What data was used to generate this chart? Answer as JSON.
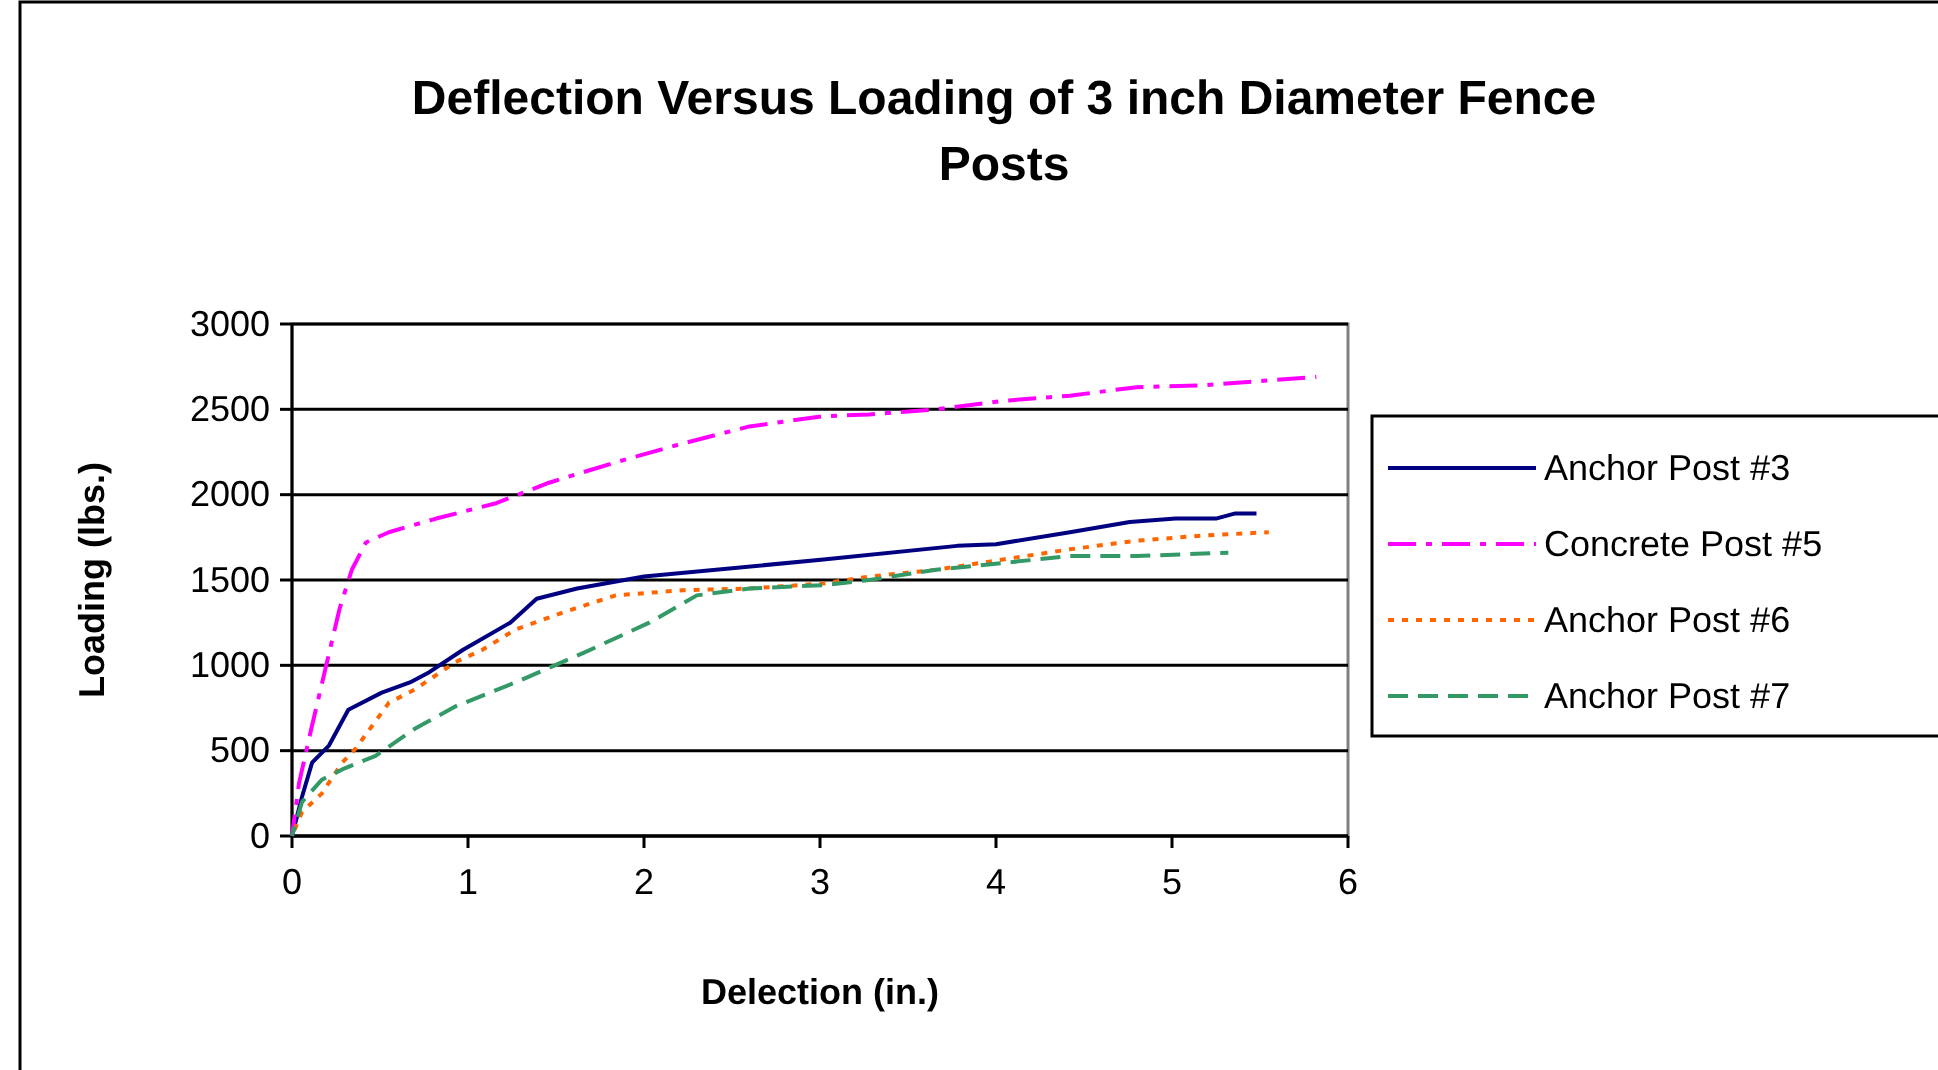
{
  "chart_data": {
    "type": "line",
    "title": "Deflection Versus Loading of 3 inch Diameter Fence Posts",
    "xlabel": "Delection (in.)",
    "ylabel": "Loading (lbs.)",
    "xlim": [
      0,
      6
    ],
    "xticks": [
      0,
      1,
      2,
      3,
      4,
      5,
      6
    ],
    "ylim": [
      0,
      3000
    ],
    "yticks": [
      0,
      500,
      1000,
      1500,
      2000,
      2500,
      3000
    ],
    "grid": "y",
    "legend": "right",
    "marker": "none",
    "series": [
      {
        "name": "Anchor Post #3",
        "color": "#000080",
        "line_style": "solid",
        "x": [
          0,
          0.057,
          0.114,
          0.21,
          0.32,
          0.51,
          0.67,
          0.78,
          0.97,
          1.24,
          1.39,
          1.62,
          2.0,
          3.02,
          3.78,
          4.0,
          4.42,
          4.76,
          5.02,
          5.25,
          5.36,
          5.48
        ],
        "values": [
          0,
          230,
          430,
          530,
          740,
          840,
          900,
          960,
          1090,
          1250,
          1390,
          1450,
          1520,
          1620,
          1700,
          1710,
          1780,
          1840,
          1860,
          1860,
          1890,
          1890
        ]
      },
      {
        "name": "Concrete Post #5",
        "color": "#ff00ff",
        "line_style": "dashdot",
        "x": [
          0,
          0.04,
          0.11,
          0.19,
          0.27,
          0.34,
          0.42,
          0.55,
          0.82,
          1.16,
          1.46,
          1.84,
          2.22,
          2.6,
          3.02,
          3.28,
          3.66,
          4.04,
          4.42,
          4.8,
          5.17,
          5.55,
          5.82
        ],
        "values": [
          0,
          310,
          630,
          980,
          1330,
          1560,
          1720,
          1780,
          1860,
          1950,
          2070,
          2190,
          2300,
          2400,
          2460,
          2470,
          2500,
          2550,
          2580,
          2630,
          2640,
          2670,
          2690
        ]
      },
      {
        "name": "Anchor Post #6",
        "color": "#ff6600",
        "line_style": "dotted",
        "x": [
          0,
          0.057,
          0.17,
          0.285,
          0.36,
          0.55,
          0.7,
          0.93,
          1.08,
          1.27,
          1.54,
          1.84,
          2.22,
          2.6,
          3.02,
          3.28,
          3.66,
          4.04,
          4.42,
          4.8,
          5.17,
          5.55
        ],
        "values": [
          0,
          140,
          250,
          430,
          510,
          780,
          860,
          1020,
          1090,
          1210,
          1310,
          1410,
          1440,
          1450,
          1480,
          1520,
          1560,
          1620,
          1680,
          1730,
          1760,
          1780
        ]
      },
      {
        "name": "Anchor Post #7",
        "color": "#339966",
        "line_style": "dashed",
        "x": [
          0,
          0.057,
          0.17,
          0.285,
          0.475,
          0.7,
          0.93,
          1.27,
          1.65,
          2.03,
          2.3,
          2.6,
          3.02,
          3.28,
          3.66,
          4.04,
          4.42,
          4.8,
          5.32
        ],
        "values": [
          0,
          200,
          330,
          390,
          470,
          630,
          760,
          900,
          1070,
          1250,
          1410,
          1450,
          1470,
          1500,
          1560,
          1600,
          1640,
          1640,
          1660
        ]
      }
    ]
  }
}
